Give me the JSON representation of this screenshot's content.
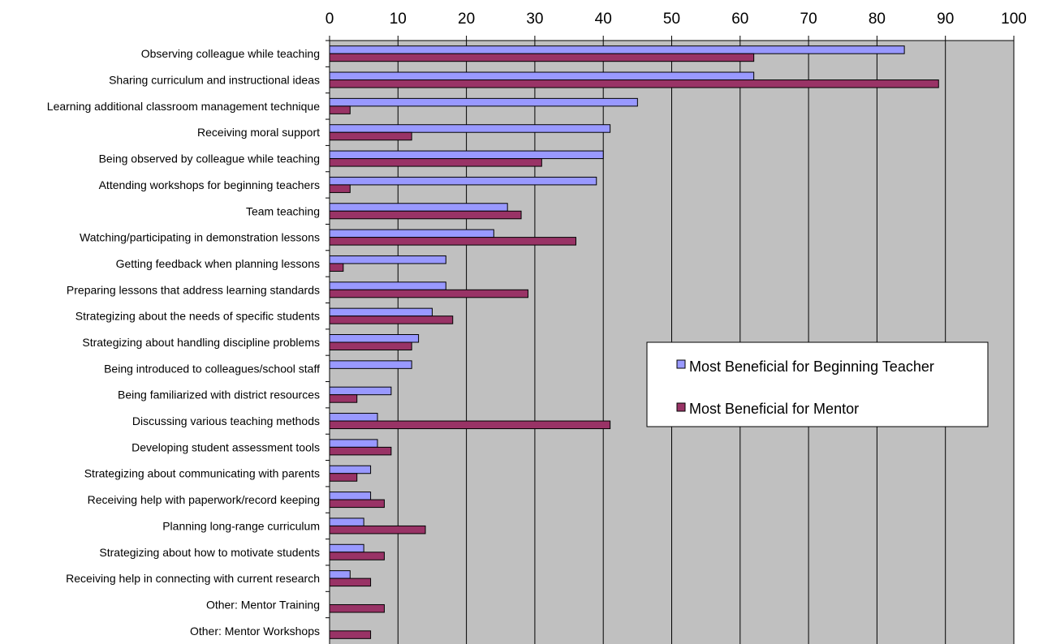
{
  "chart_data": {
    "type": "bar",
    "orientation": "horizontal",
    "title": "",
    "xlabel": "",
    "ylabel": "",
    "xlim": [
      0,
      100
    ],
    "x_ticks": [
      0,
      10,
      20,
      30,
      40,
      50,
      60,
      70,
      80,
      90,
      100
    ],
    "grid": "vertical",
    "legend_position": "right",
    "plot_background": "#c0c0c0",
    "categories": [
      "Observing colleague while teaching",
      "Sharing curriculum and instructional ideas",
      "Learning additional classroom management technique",
      "Receiving moral support",
      "Being observed by colleague while teaching",
      "Attending workshops for beginning teachers",
      "Team teaching",
      "Watching/participating in demonstration lessons",
      "Getting feedback when planning lessons",
      "Preparing lessons that address learning standards",
      "Strategizing about the needs of specific students",
      "Strategizing about handling discipline problems",
      "Being introduced to colleagues/school staff",
      "Being familiarized with district resources",
      "Discussing various teaching methods",
      "Developing student assessment tools",
      "Strategizing about communicating with parents",
      "Receiving help with paperwork/record keeping",
      "Planning long-range curriculum",
      "Strategizing about how to motivate students",
      "Receiving help in connecting with current research",
      "Other: Mentor Training",
      "Other: Mentor Workshops"
    ],
    "series": [
      {
        "name": "Most Beneficial for Beginning Teacher",
        "color": "#9999ff",
        "values": [
          84,
          62,
          45,
          41,
          40,
          39,
          26,
          24,
          17,
          17,
          15,
          13,
          12,
          9,
          7,
          7,
          6,
          6,
          5,
          5,
          3,
          0,
          0
        ]
      },
      {
        "name": "Most Beneficial for Mentor",
        "color": "#993366",
        "values": [
          62,
          89,
          3,
          12,
          31,
          3,
          28,
          36,
          2,
          29,
          18,
          12,
          0,
          4,
          41,
          9,
          4,
          8,
          14,
          8,
          6,
          8,
          6
        ]
      }
    ]
  }
}
